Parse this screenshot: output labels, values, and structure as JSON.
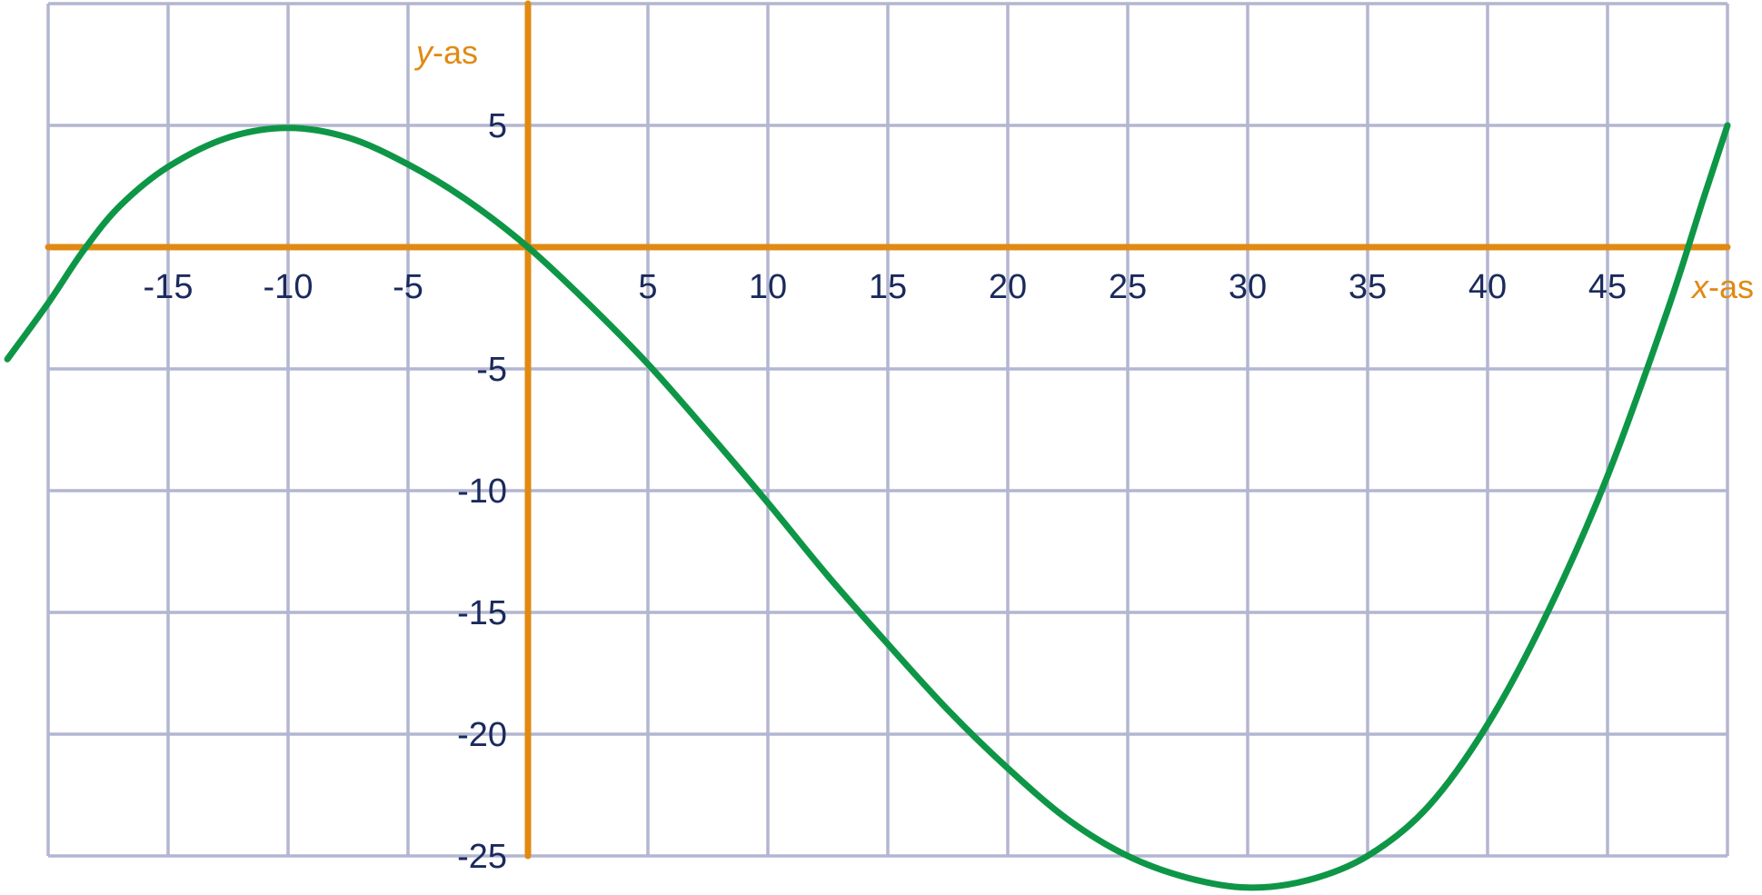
{
  "colors": {
    "grid": "#b3b6d0",
    "axis": "#e08a12",
    "curve": "#0e9647",
    "tick_text": "#1b2a5c",
    "axis_label": "#e08a12"
  },
  "chart_data": {
    "type": "line",
    "title": "",
    "xlabel": {
      "italic": "x",
      "suffix": "-as"
    },
    "ylabel": {
      "italic": "y",
      "suffix": "-as"
    },
    "xlim": [
      -20,
      50
    ],
    "ylim": [
      -25,
      10
    ],
    "grid": true,
    "x_ticks": [
      "-15",
      "-10",
      "-5",
      "5",
      "10",
      "15",
      "20",
      "25",
      "30",
      "35",
      "40",
      "45"
    ],
    "y_ticks": [
      "5",
      "-5",
      "-10",
      "-15",
      "-20",
      "-25"
    ],
    "series": [
      {
        "points": [
          [
            -21.7,
            -4.6
          ],
          [
            -20,
            -2.3
          ],
          [
            -18.5,
            -0.1
          ],
          [
            -17,
            1.7
          ],
          [
            -15,
            3.3
          ],
          [
            -12.5,
            4.5
          ],
          [
            -10,
            4.9
          ],
          [
            -7.5,
            4.5
          ],
          [
            -5,
            3.4
          ],
          [
            -2.5,
            1.9
          ],
          [
            0,
            0
          ],
          [
            2.5,
            -2.3
          ],
          [
            5,
            -4.8
          ],
          [
            7.5,
            -7.6
          ],
          [
            10,
            -10.5
          ],
          [
            12.5,
            -13.5
          ],
          [
            15,
            -16.3
          ],
          [
            17.5,
            -19.0
          ],
          [
            20,
            -21.4
          ],
          [
            22.5,
            -23.5
          ],
          [
            25,
            -25.0
          ],
          [
            27.5,
            -25.9
          ],
          [
            30,
            -26.3
          ],
          [
            32.5,
            -26.0
          ],
          [
            35,
            -25.0
          ],
          [
            37.5,
            -23.0
          ],
          [
            40,
            -19.6
          ],
          [
            42.5,
            -15.0
          ],
          [
            45,
            -9.4
          ],
          [
            47.5,
            -2.6
          ],
          [
            49,
            2.0
          ],
          [
            50,
            5.0
          ]
        ]
      }
    ]
  }
}
